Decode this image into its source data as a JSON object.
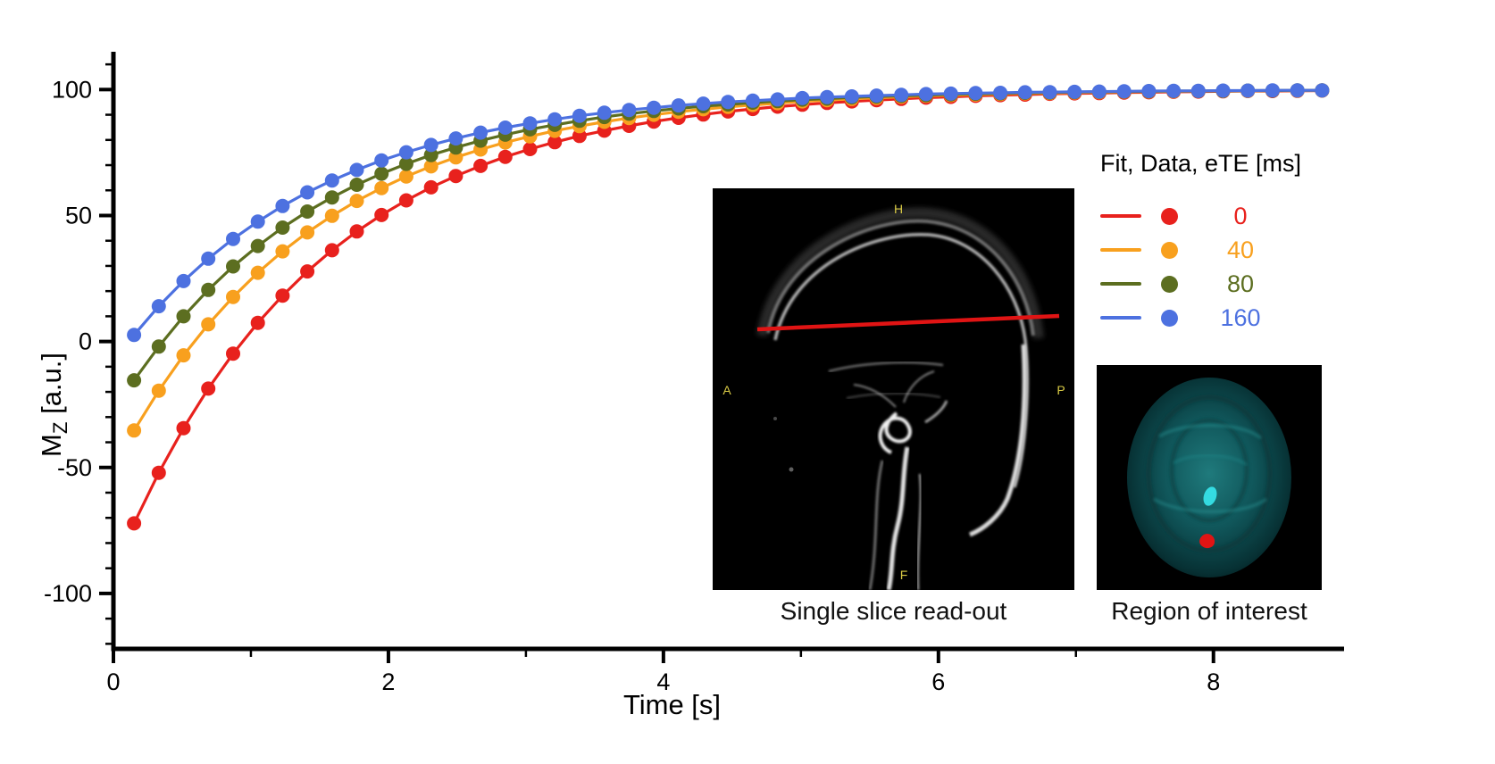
{
  "figure": {
    "y_axis": {
      "label_parts": {
        "m": "M",
        "sub": "Z",
        "unit": " [a.u.]"
      },
      "ticks": [
        -100,
        -50,
        0,
        50,
        100
      ]
    },
    "x_axis": {
      "label": "Time [s]",
      "ticks": [
        0,
        2,
        4,
        6,
        8
      ]
    },
    "legend": {
      "header": "Fit,  Data,  eTE [ms]"
    },
    "insets": [
      {
        "caption": "Single slice read-out",
        "labels": {
          "h": "H",
          "a": "A",
          "p": "P",
          "f": "F"
        }
      },
      {
        "caption": "Region of interest"
      }
    ]
  },
  "chart_data": {
    "type": "line",
    "title": "",
    "xlabel": "Time [s]",
    "ylabel": "Mz [a.u.]",
    "xlim": [
      0,
      8.95
    ],
    "ylim": [
      -122,
      115
    ],
    "x_major_ticks": [
      0,
      2,
      4,
      6,
      8
    ],
    "x_minor_ticks": [
      1,
      3,
      5,
      7
    ],
    "y_major_ticks": [
      -100,
      -50,
      0,
      50,
      100
    ],
    "y_minor_step": 10,
    "grid": false,
    "legend_position": "upper right",
    "legend_header": "Fit,  Data,  eTE [ms]",
    "x": [
      0.15,
      0.33,
      0.51,
      0.69,
      0.87,
      1.05,
      1.23,
      1.41,
      1.59,
      1.77,
      1.95,
      2.13,
      2.31,
      2.49,
      2.67,
      2.85,
      3.03,
      3.21,
      3.39,
      3.57,
      3.75,
      3.93,
      4.11,
      4.29,
      4.47,
      4.65,
      4.83,
      5.01,
      5.19,
      5.37,
      5.55,
      5.73,
      5.91,
      6.09,
      6.27,
      6.45,
      6.63,
      6.81,
      6.99,
      7.17,
      7.35,
      7.53,
      7.71,
      7.89,
      8.07,
      8.25,
      8.43,
      8.61,
      8.79
    ],
    "series": [
      {
        "name": "eTE 0 ms",
        "legend_value": "0",
        "color": "#e8211d",
        "values": [
          -72.2,
          -52.1,
          -34.4,
          -18.7,
          -4.8,
          7.4,
          18.2,
          27.8,
          36.2,
          43.7,
          50.2,
          56.0,
          61.2,
          65.7,
          69.7,
          73.3,
          76.4,
          79.1,
          81.6,
          83.7,
          85.6,
          87.3,
          88.8,
          90.1,
          91.3,
          92.3,
          93.2,
          94.0,
          94.7,
          95.3,
          95.8,
          96.3,
          96.8,
          97.1,
          97.5,
          97.8,
          98.0,
          98.3,
          98.5,
          98.6,
          98.8,
          98.9,
          99.1,
          99.2,
          99.3,
          99.4,
          99.4,
          99.5,
          99.6
        ]
      },
      {
        "name": "eTE 40 ms",
        "legend_value": "40",
        "color": "#f8a01e",
        "values": [
          -35.3,
          -19.5,
          -5.5,
          6.8,
          17.7,
          27.3,
          35.8,
          43.3,
          49.9,
          55.8,
          60.9,
          65.5,
          69.5,
          73.1,
          76.2,
          79.0,
          81.4,
          83.6,
          85.5,
          87.2,
          88.7,
          90.0,
          91.2,
          92.2,
          93.1,
          93.9,
          94.6,
          95.3,
          95.8,
          96.3,
          96.7,
          97.1,
          97.5,
          97.8,
          98.0,
          98.2,
          98.5,
          98.6,
          98.8,
          98.9,
          99.1,
          99.2,
          99.3,
          99.4,
          99.4,
          99.5,
          99.6,
          99.6,
          99.7
        ]
      },
      {
        "name": "eTE 80 ms",
        "legend_value": "80",
        "color": "#5c6e20",
        "values": [
          -15.4,
          -2.0,
          10.0,
          20.5,
          29.8,
          37.9,
          45.2,
          51.6,
          57.2,
          62.2,
          66.6,
          70.5,
          74.0,
          77.0,
          79.7,
          82.1,
          84.2,
          86.0,
          87.6,
          89.1,
          90.4,
          91.5,
          92.5,
          93.4,
          94.1,
          94.8,
          95.4,
          96.0,
          96.4,
          96.9,
          97.2,
          97.5,
          97.8,
          98.1,
          98.3,
          98.5,
          98.7,
          98.8,
          99.0,
          99.1,
          99.2,
          99.3,
          99.4,
          99.4,
          99.5,
          99.6,
          99.6,
          99.7,
          99.7
        ]
      },
      {
        "name": "eTE 160 ms",
        "legend_value": "160",
        "color": "#4d71e0",
        "values": [
          2.6,
          14.0,
          24.0,
          32.9,
          40.7,
          47.6,
          53.8,
          59.2,
          63.9,
          68.1,
          71.9,
          75.1,
          78.0,
          80.6,
          82.9,
          84.9,
          86.6,
          88.2,
          89.6,
          90.8,
          91.9,
          92.8,
          93.7,
          94.4,
          95.1,
          95.6,
          96.1,
          96.6,
          97.0,
          97.3,
          97.6,
          97.9,
          98.2,
          98.4,
          98.6,
          98.7,
          98.9,
          99.0,
          99.1,
          99.2,
          99.3,
          99.4,
          99.5,
          99.5,
          99.6,
          99.6,
          99.7,
          99.7,
          99.7
        ]
      }
    ]
  }
}
